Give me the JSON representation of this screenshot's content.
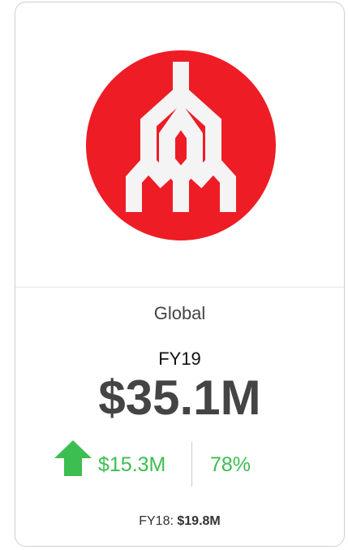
{
  "card": {
    "region": "Global",
    "fiscal_year": "FY19",
    "value": "$35.1M",
    "change": "$15.3M",
    "change_percent": "78%",
    "prior_label": "FY18:",
    "prior_value": "$19.8M"
  }
}
